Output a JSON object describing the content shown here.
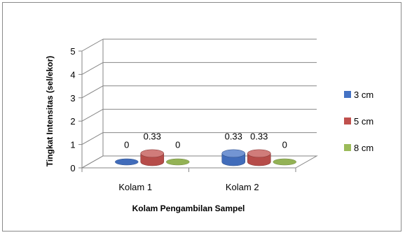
{
  "chart_data": {
    "type": "bar",
    "style": "3d-cylinder",
    "categories": [
      "Kolam 1",
      "Kolam 2"
    ],
    "series": [
      {
        "name": "3 cm",
        "values": [
          0,
          0.33
        ],
        "labels": [
          "0",
          "0.33"
        ],
        "color": "#4472C4"
      },
      {
        "name": "5 cm",
        "values": [
          0.33,
          0.33
        ],
        "labels": [
          "0.33",
          "0.33"
        ],
        "color": "#C0504D"
      },
      {
        "name": "8 cm",
        "values": [
          0,
          0
        ],
        "labels": [
          "0",
          "0"
        ],
        "color": "#9BBB59"
      }
    ],
    "xlabel": "Kolam Pengambilan Sampel",
    "ylabel": "Tingkat Intensitas (sel/ekor)",
    "ylim": [
      0,
      5
    ],
    "yticks": [
      "0",
      "1",
      "2",
      "3",
      "4",
      "5"
    ],
    "grid": true,
    "legend": "right"
  }
}
